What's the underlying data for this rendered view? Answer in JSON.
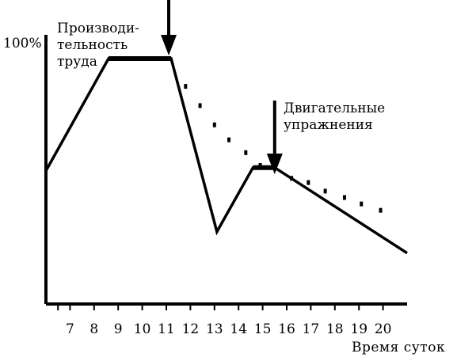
{
  "chart_data": {
    "type": "line",
    "ylabel": "100%",
    "series_label_lines": [
      "Производи-",
      "тельность",
      "труда"
    ],
    "xlabel": "Время суток",
    "x_ticks": [
      7,
      8,
      9,
      10,
      11,
      12,
      13,
      14,
      15,
      16,
      17,
      18,
      19,
      20
    ],
    "xlim": [
      6,
      21.2
    ],
    "ylim": [
      0,
      100
    ],
    "series": [
      {
        "values_x": [
          6,
          8.6,
          10.8,
          11.2,
          13.1,
          14.6,
          15.5,
          21.0
        ],
        "values_y": [
          47.5,
          100,
          100,
          100,
          19,
          49,
          49,
          9
        ],
        "style": "solid"
      },
      {
        "values_x": [
          11.8,
          12.4,
          13.0,
          13.6,
          14.3,
          14.9,
          16.2,
          16.9,
          17.6,
          18.4,
          19.1,
          19.9
        ],
        "values_y": [
          87,
          78,
          69,
          62,
          56,
          50,
          44,
          42,
          38,
          35,
          32,
          29
        ],
        "style": "dotted"
      }
    ],
    "flat_segments": [
      {
        "x": [
          8.6,
          11.2
        ],
        "y": 100
      },
      {
        "x": [
          14.6,
          15.5
        ],
        "y": 49
      }
    ],
    "annotations": [
      {
        "x": 11.1,
        "text_lines": []
      },
      {
        "x": 15.5,
        "text_lines": [
          "Двигательные",
          "упражнения"
        ]
      }
    ],
    "grid": false
  }
}
